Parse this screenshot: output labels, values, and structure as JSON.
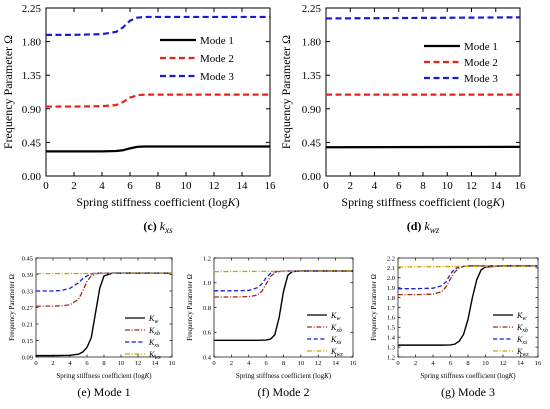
{
  "chart_data": [
    {
      "type": "line",
      "caption_letter": "(c)",
      "caption_symbol": "k",
      "caption_sub": "xs",
      "xlabel": "Spring stiffness coefficient (log",
      "xlabel_var": "K",
      "xlabel_end": ")",
      "ylabel": "Frequency Parameter Ω",
      "xlim": [
        0,
        16
      ],
      "ylim": [
        0,
        2.25
      ],
      "xticks": [
        0,
        2,
        4,
        6,
        8,
        10,
        12,
        14,
        16
      ],
      "xtick_labels": [
        "0",
        "2",
        "4",
        "6",
        "8",
        "10",
        "12",
        "14",
        "16"
      ],
      "yticks": [
        0,
        0.45,
        0.9,
        1.35,
        1.8,
        2.25
      ],
      "ytick_labels": [
        "0.00",
        "0.45",
        "0.90",
        "1.35",
        "1.80",
        "2.25"
      ],
      "legend_position": "upper right",
      "series": [
        {
          "name": "Mode 1",
          "color": "#000000",
          "dash": "solid",
          "x": [
            0,
            2,
            4,
            5,
            5.5,
            6,
            6.5,
            7,
            8,
            10,
            12,
            14,
            16
          ],
          "y": [
            0.33,
            0.33,
            0.33,
            0.335,
            0.345,
            0.37,
            0.39,
            0.395,
            0.395,
            0.395,
            0.395,
            0.395,
            0.395
          ]
        },
        {
          "name": "Mode 2",
          "color": "#e8221b",
          "dash": "dash",
          "x": [
            0,
            2,
            4,
            5,
            5.5,
            6,
            6.5,
            7,
            8,
            10,
            12,
            14,
            16
          ],
          "y": [
            0.93,
            0.93,
            0.935,
            0.95,
            0.99,
            1.05,
            1.08,
            1.09,
            1.09,
            1.09,
            1.09,
            1.09,
            1.09
          ]
        },
        {
          "name": "Mode 3",
          "color": "#1a1ad6",
          "dash": "dash",
          "x": [
            0,
            2,
            4,
            5,
            5.5,
            6,
            6.5,
            7,
            8,
            10,
            12,
            14,
            16
          ],
          "y": [
            1.89,
            1.89,
            1.9,
            1.93,
            1.99,
            2.08,
            2.12,
            2.13,
            2.13,
            2.13,
            2.13,
            2.13,
            2.13
          ]
        }
      ]
    },
    {
      "type": "line",
      "caption_letter": "(d)",
      "caption_symbol": "k",
      "caption_sub": "wz",
      "xlabel": "Spring stiffness coefficient (log",
      "xlabel_var": "K",
      "xlabel_end": ")",
      "ylabel": "Frequency Parameter Ω",
      "xlim": [
        0,
        16
      ],
      "ylim": [
        0,
        2.25
      ],
      "xticks": [
        0,
        2,
        4,
        6,
        8,
        10,
        12,
        14,
        16
      ],
      "xtick_labels": [
        "0",
        "2",
        "4",
        "6",
        "8",
        "10",
        "12",
        "14",
        "16"
      ],
      "yticks": [
        0,
        0.45,
        0.9,
        1.35,
        1.8,
        2.25
      ],
      "ytick_labels": [
        "0.00",
        "0.45",
        "0.90",
        "1.35",
        "1.80",
        "2.25"
      ],
      "legend_position": "upper right",
      "series": [
        {
          "name": "Mode 1",
          "color": "#000000",
          "dash": "solid",
          "x": [
            0,
            16
          ],
          "y": [
            0.385,
            0.39
          ]
        },
        {
          "name": "Mode 2",
          "color": "#e8221b",
          "dash": "dash",
          "x": [
            0,
            16
          ],
          "y": [
            1.09,
            1.09
          ]
        },
        {
          "name": "Mode 3",
          "color": "#1a1ad6",
          "dash": "dash",
          "x": [
            0,
            16
          ],
          "y": [
            2.11,
            2.125
          ]
        }
      ]
    },
    {
      "type": "line",
      "caption": "(e) Mode 1",
      "xlabel": "Spring stiffness coefficient (log",
      "xlabel_var": "K",
      "xlabel_end": ")",
      "ylabel": "Frequency Parameter Ω",
      "xlim": [
        0,
        16
      ],
      "ylim": [
        0.09,
        0.45
      ],
      "xticks": [
        0,
        2,
        4,
        6,
        8,
        10,
        12,
        14,
        16
      ],
      "xtick_labels": [
        "0",
        "2",
        "4",
        "6",
        "8",
        "10",
        "12",
        "14",
        "16"
      ],
      "yticks": [
        0.09,
        0.15,
        0.21,
        0.27,
        0.33,
        0.39,
        0.45
      ],
      "ytick_labels": [
        "0.09",
        "0.15",
        "0.21",
        "0.27",
        "0.33",
        "0.39",
        "0.45"
      ],
      "legend_position": "right",
      "series": [
        {
          "name": "K",
          "name_sub": "w",
          "color": "#000000",
          "dash": "solid",
          "x": [
            0,
            2,
            4,
            5,
            5.5,
            6,
            6.5,
            7,
            7.5,
            8,
            9,
            10,
            12,
            14,
            16
          ],
          "y": [
            0.095,
            0.095,
            0.096,
            0.1,
            0.108,
            0.125,
            0.16,
            0.25,
            0.34,
            0.385,
            0.395,
            0.395,
            0.395,
            0.395,
            0.395
          ]
        },
        {
          "name": "K",
          "name_sub": "xb",
          "color": "#a0281e",
          "dash": "dashdot",
          "x": [
            0,
            2,
            3,
            4,
            5,
            5.5,
            6,
            6.5,
            7,
            7.5,
            8,
            10,
            12,
            14,
            16
          ],
          "y": [
            0.275,
            0.275,
            0.276,
            0.28,
            0.3,
            0.33,
            0.365,
            0.385,
            0.392,
            0.395,
            0.395,
            0.395,
            0.395,
            0.395,
            0.395
          ]
        },
        {
          "name": "K",
          "name_sub": "xs",
          "color": "#1a1ad6",
          "dash": "dash",
          "x": [
            0,
            2,
            3,
            4,
            5,
            5.5,
            6,
            6.5,
            7,
            8,
            10,
            12,
            14,
            16
          ],
          "y": [
            0.33,
            0.33,
            0.332,
            0.34,
            0.36,
            0.375,
            0.385,
            0.392,
            0.395,
            0.395,
            0.395,
            0.395,
            0.395,
            0.395
          ]
        },
        {
          "name": "K",
          "name_sub": "wz",
          "color": "#c9a400",
          "dash": "dashdot",
          "x": [
            0,
            16
          ],
          "y": [
            0.393,
            0.395
          ]
        }
      ]
    },
    {
      "type": "line",
      "caption": "(f) Mode 2",
      "xlabel": "Spring stiffness coefficient (log",
      "xlabel_var": "K",
      "xlabel_end": ")",
      "ylabel": "Frequency Parameter Ω",
      "xlim": [
        0,
        16
      ],
      "ylim": [
        0.4,
        1.2
      ],
      "xticks": [
        0,
        2,
        4,
        6,
        8,
        10,
        12,
        14,
        16
      ],
      "xtick_labels": [
        "0",
        "2",
        "4",
        "6",
        "8",
        "10",
        "12",
        "14",
        "16"
      ],
      "yticks": [
        0.4,
        0.6,
        0.8,
        1.0,
        1.2
      ],
      "ytick_labels": [
        "0.4",
        "0.6",
        "0.8",
        "1.0",
        "1.2"
      ],
      "legend_position": "right",
      "series": [
        {
          "name": "K",
          "name_sub": "w",
          "color": "#000000",
          "dash": "solid",
          "x": [
            0,
            2,
            4,
            5,
            6,
            6.5,
            7,
            7.5,
            8,
            8.5,
            9,
            10,
            12,
            14,
            16
          ],
          "y": [
            0.535,
            0.535,
            0.535,
            0.535,
            0.537,
            0.545,
            0.58,
            0.72,
            0.93,
            1.06,
            1.09,
            1.095,
            1.095,
            1.095,
            1.095
          ]
        },
        {
          "name": "K",
          "name_sub": "xb",
          "color": "#a0281e",
          "dash": "dashdot",
          "x": [
            0,
            2,
            4,
            5,
            5.5,
            6,
            6.5,
            7,
            7.5,
            8,
            10,
            12,
            14,
            16
          ],
          "y": [
            0.885,
            0.885,
            0.888,
            0.9,
            0.93,
            0.99,
            1.05,
            1.08,
            1.09,
            1.095,
            1.095,
            1.095,
            1.095,
            1.095
          ]
        },
        {
          "name": "K",
          "name_sub": "xs",
          "color": "#1a1ad6",
          "dash": "dash",
          "x": [
            0,
            2,
            4,
            5,
            5.5,
            6,
            6.5,
            7,
            8,
            10,
            12,
            14,
            16
          ],
          "y": [
            0.935,
            0.935,
            0.938,
            0.96,
            0.99,
            1.04,
            1.075,
            1.09,
            1.095,
            1.095,
            1.095,
            1.095,
            1.095
          ]
        },
        {
          "name": "K",
          "name_sub": "wz",
          "color": "#c9a400",
          "dash": "dashdot",
          "x": [
            0,
            16
          ],
          "y": [
            1.09,
            1.095
          ]
        }
      ]
    },
    {
      "type": "line",
      "caption": "(g) Mode 3",
      "xlabel": "Spring stiffness coefficient (log",
      "xlabel_var": "K",
      "xlabel_end": ")",
      "ylabel": "Frequency Parameter Ω",
      "xlim": [
        0,
        16
      ],
      "ylim": [
        1.2,
        2.2
      ],
      "xticks": [
        0,
        2,
        4,
        6,
        8,
        10,
        12,
        14,
        16
      ],
      "xtick_labels": [
        "0",
        "2",
        "4",
        "6",
        "8",
        "10",
        "12",
        "14",
        "16"
      ],
      "yticks": [
        1.2,
        1.3,
        1.4,
        1.5,
        1.6,
        1.7,
        1.8,
        1.9,
        2.0,
        2.1,
        2.2
      ],
      "ytick_labels": [
        "1.2",
        "1.3",
        "1.4",
        "1.5",
        "1.6",
        "1.7",
        "1.8",
        "1.9",
        "2.0",
        "2.1",
        "2.2"
      ],
      "legend_position": "right",
      "series": [
        {
          "name": "K",
          "name_sub": "w",
          "color": "#000000",
          "dash": "solid",
          "x": [
            0,
            2,
            4,
            5,
            6,
            6.5,
            7,
            7.5,
            8,
            8.5,
            9,
            9.5,
            10,
            12,
            14,
            16
          ],
          "y": [
            1.32,
            1.32,
            1.32,
            1.32,
            1.322,
            1.33,
            1.36,
            1.43,
            1.58,
            1.8,
            1.98,
            2.08,
            2.11,
            2.12,
            2.12,
            2.12
          ]
        },
        {
          "name": "K",
          "name_sub": "xb",
          "color": "#a0281e",
          "dash": "dashdot",
          "x": [
            0,
            2,
            4,
            5,
            5.5,
            6,
            6.5,
            7,
            7.5,
            8,
            10,
            12,
            14,
            16
          ],
          "y": [
            1.83,
            1.83,
            1.835,
            1.86,
            1.91,
            1.99,
            2.06,
            2.1,
            2.115,
            2.12,
            2.12,
            2.12,
            2.12,
            2.12
          ]
        },
        {
          "name": "K",
          "name_sub": "xs",
          "color": "#1a1ad6",
          "dash": "dash",
          "x": [
            0,
            2,
            4,
            5,
            5.5,
            6,
            6.5,
            7,
            8,
            10,
            12,
            14,
            16
          ],
          "y": [
            1.89,
            1.89,
            1.895,
            1.92,
            1.96,
            2.04,
            2.09,
            2.11,
            2.12,
            2.12,
            2.12,
            2.12,
            2.12
          ]
        },
        {
          "name": "K",
          "name_sub": "wz",
          "color": "#c9a400",
          "dash": "dashdot",
          "x": [
            0,
            16
          ],
          "y": [
            2.11,
            2.12
          ]
        }
      ]
    }
  ]
}
